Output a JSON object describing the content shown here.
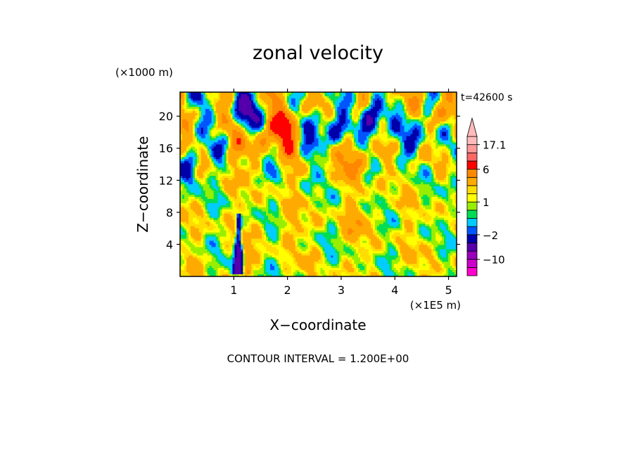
{
  "figure": {
    "title": "zonal velocity",
    "contour_interval_text": "CONTOUR INTERVAL = 1.200E+00"
  },
  "chart_data": {
    "type": "heatmap",
    "title": "zonal velocity",
    "subtitle": "t=42600 s",
    "variable": "zonal velocity",
    "time_label": "t=42600 s",
    "xlabel": "X−coordinate",
    "ylabel": "Z−coordinate",
    "x_unit_label": "(×1E5 m)",
    "y_unit_label": "(×1000 m)",
    "xlim": [
      0,
      5.15
    ],
    "ylim": [
      0,
      23
    ],
    "x_ticks": [
      1,
      2,
      3,
      4,
      5
    ],
    "y_ticks": [
      4,
      8,
      12,
      16,
      20
    ],
    "x_tick_labels": [
      "1",
      "2",
      "3",
      "4",
      "5"
    ],
    "y_tick_labels": [
      "4",
      "8",
      "12",
      "16",
      "20"
    ],
    "contour_interval": 1.2,
    "contour_interval_text": "CONTOUR INTERVAL = 1.200E+00",
    "colorbar": {
      "labels": [
        "17.1",
        "6",
        "1",
        "−2",
        "−10"
      ],
      "label_values": [
        17.1,
        6,
        1,
        -2,
        -10
      ],
      "levels": [
        -16,
        -13,
        -10,
        -7,
        -4,
        -2,
        -1,
        0,
        0.5,
        1,
        1.5,
        2,
        4,
        6,
        9,
        13,
        17.1
      ],
      "colors": [
        "#ff00cc",
        "#cc00cc",
        "#9900bb",
        "#5500aa",
        "#0000aa",
        "#0055ff",
        "#00ccff",
        "#00dd55",
        "#99ee00",
        "#ffff00",
        "#ffdd00",
        "#ffaa00",
        "#ff8800",
        "#ff0000",
        "#ff6666",
        "#ff9999",
        "#ffbbbb"
      ],
      "extend": "max"
    },
    "grid": false,
    "features": [
      {
        "x": 1.08,
        "z_base": 0.3,
        "z_top": 7.8,
        "min_value": -8,
        "shape": "narrow plume"
      },
      {
        "x": 1.95,
        "z": 18.8,
        "value": 6.5
      },
      {
        "x": 3.3,
        "z": 14.8,
        "value": 4.5
      },
      {
        "x": 1.18,
        "z": 20.5,
        "value": -5.0
      },
      {
        "x": 2.8,
        "z": 18.5,
        "value": -5.5
      },
      {
        "x": 3.55,
        "z": 19.0,
        "value": -6.0
      },
      {
        "x": 4.35,
        "z": 17.6,
        "value": -4.5
      },
      {
        "x": 0.12,
        "z": 13.5,
        "value": -4.0
      },
      {
        "x": 1.45,
        "z": 16.5,
        "value": 4.0
      },
      {
        "x": 2.05,
        "z": 6.0,
        "value": 1.0
      },
      {
        "x": 3.3,
        "z": 7.0,
        "value": 2.0
      },
      {
        "x": 4.8,
        "z": 20.0,
        "value": 3.0
      }
    ]
  }
}
